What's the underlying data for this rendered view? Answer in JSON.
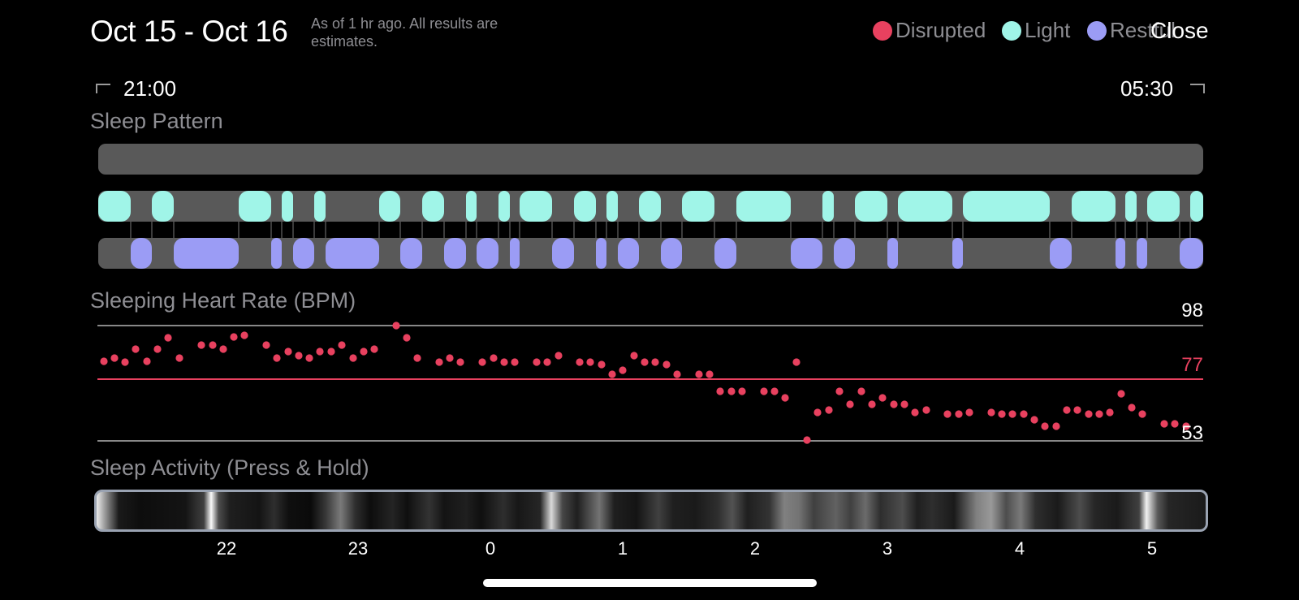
{
  "header": {
    "title": "Oct 15 - Oct 16",
    "subtitle": "As of 1 hr ago. All results are estimates.",
    "close_label": "Close"
  },
  "legend": [
    {
      "label": "Disrupted",
      "color": "#E8415F"
    },
    {
      "label": "Light",
      "color": "#A0F5E8"
    },
    {
      "label": "Restful",
      "color": "#9B9CF5"
    }
  ],
  "time_range": {
    "start": "21:00",
    "end": "05:30"
  },
  "sleep_pattern": {
    "title": "Sleep Pattern",
    "light_color": "#A0F5E8",
    "restful_color": "#9B9CF5",
    "track_color": "#595959"
  },
  "heart_rate": {
    "title": "Sleeping Heart Rate (BPM)",
    "max": "98",
    "avg": "77",
    "min": "53",
    "color": "#E8415F"
  },
  "activity": {
    "title": "Sleep Activity (Press & Hold)"
  },
  "time_axis": {
    "ticks": [
      "22",
      "23",
      "0",
      "1",
      "2",
      "3",
      "4",
      "5"
    ]
  }
}
